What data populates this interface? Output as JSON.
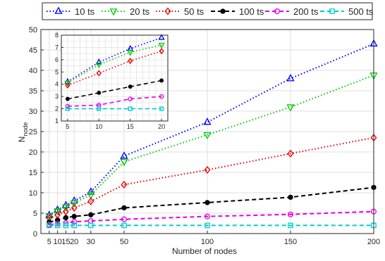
{
  "chart_data": [
    {
      "type": "line",
      "xlabel": "Number of nodes",
      "ylabel_main": "N",
      "ylabel_sub": "node",
      "xlim": [
        0,
        200
      ],
      "ylim": [
        0,
        50
      ],
      "xticks": [
        5,
        10,
        15,
        20,
        30,
        50,
        100,
        150,
        200
      ],
      "xtick_labels": [
        "5",
        "10",
        "15",
        "20",
        "30",
        "50",
        "100",
        "150",
        "200"
      ],
      "yticks": [
        0,
        5,
        10,
        15,
        20,
        25,
        30,
        35,
        40,
        45,
        50
      ],
      "ytick_labels": [
        "0",
        "5",
        "10",
        "15",
        "20",
        "25",
        "30",
        "35",
        "40",
        "45",
        "50"
      ],
      "grid": true,
      "legend_position": "top",
      "x": [
        5,
        10,
        15,
        20,
        30,
        50,
        100,
        150,
        200
      ],
      "series": [
        {
          "name": "10 ts",
          "color": "#0000ff",
          "dash": "dotted",
          "marker": "triangle-up",
          "values": [
            4.5,
            5.8,
            6.9,
            8.0,
            10.2,
            19.0,
            27.3,
            38.0,
            46.5
          ]
        },
        {
          "name": "20 ts",
          "color": "#00cc00",
          "dash": "dotted",
          "marker": "triangle-down",
          "values": [
            4.3,
            5.5,
            6.5,
            7.5,
            9.5,
            17.6,
            24.2,
            31.0,
            38.8
          ]
        },
        {
          "name": "50 ts",
          "color": "#e60000",
          "dash": "dotted",
          "marker": "diamond",
          "values": [
            3.8,
            4.6,
            5.4,
            6.3,
            7.9,
            12.0,
            15.6,
            19.6,
            23.5
          ]
        },
        {
          "name": "100 ts",
          "color": "#000000",
          "dash": "dashed",
          "marker": "circle-filled",
          "values": [
            2.8,
            3.3,
            3.9,
            4.2,
            4.6,
            6.3,
            7.6,
            8.9,
            11.3
          ]
        },
        {
          "name": "200 ts",
          "color": "#e600e6",
          "dash": "dashed",
          "marker": "circle-open",
          "values": [
            2.2,
            2.4,
            2.6,
            2.9,
            3.1,
            3.5,
            4.2,
            4.7,
            5.4
          ]
        },
        {
          "name": "500 ts",
          "color": "#00cccc",
          "dash": "dashed",
          "marker": "square-open",
          "values": [
            2.0,
            2.0,
            2.0,
            2.0,
            2.0,
            2.0,
            2.0,
            2.0,
            2.0
          ]
        }
      ]
    },
    {
      "type": "line",
      "inset": true,
      "xlim": [
        4,
        21
      ],
      "ylim": [
        1,
        8
      ],
      "xticks": [
        5,
        10,
        15,
        20
      ],
      "xtick_labels": [
        "5",
        "10",
        "15",
        "20"
      ],
      "yticks": [
        1,
        2,
        3,
        4,
        5,
        6,
        7,
        8
      ],
      "ytick_labels": [
        "1",
        "2",
        "3",
        "4",
        "5",
        "6",
        "7",
        "8"
      ],
      "grid": true,
      "x": [
        5,
        10,
        15,
        20
      ],
      "series": [
        {
          "name": "10 ts",
          "values": [
            4.2,
            5.8,
            6.9,
            7.8
          ]
        },
        {
          "name": "20 ts",
          "values": [
            4.1,
            5.6,
            6.6,
            7.2
          ]
        },
        {
          "name": "50 ts",
          "values": [
            3.9,
            4.9,
            5.9,
            6.7
          ]
        },
        {
          "name": "100 ts",
          "values": [
            2.8,
            3.3,
            3.8,
            4.3
          ]
        },
        {
          "name": "200 ts",
          "values": [
            2.2,
            2.3,
            2.8,
            3.0
          ]
        },
        {
          "name": "500 ts",
          "values": [
            2.0,
            2.0,
            2.0,
            2.0
          ]
        }
      ]
    }
  ]
}
